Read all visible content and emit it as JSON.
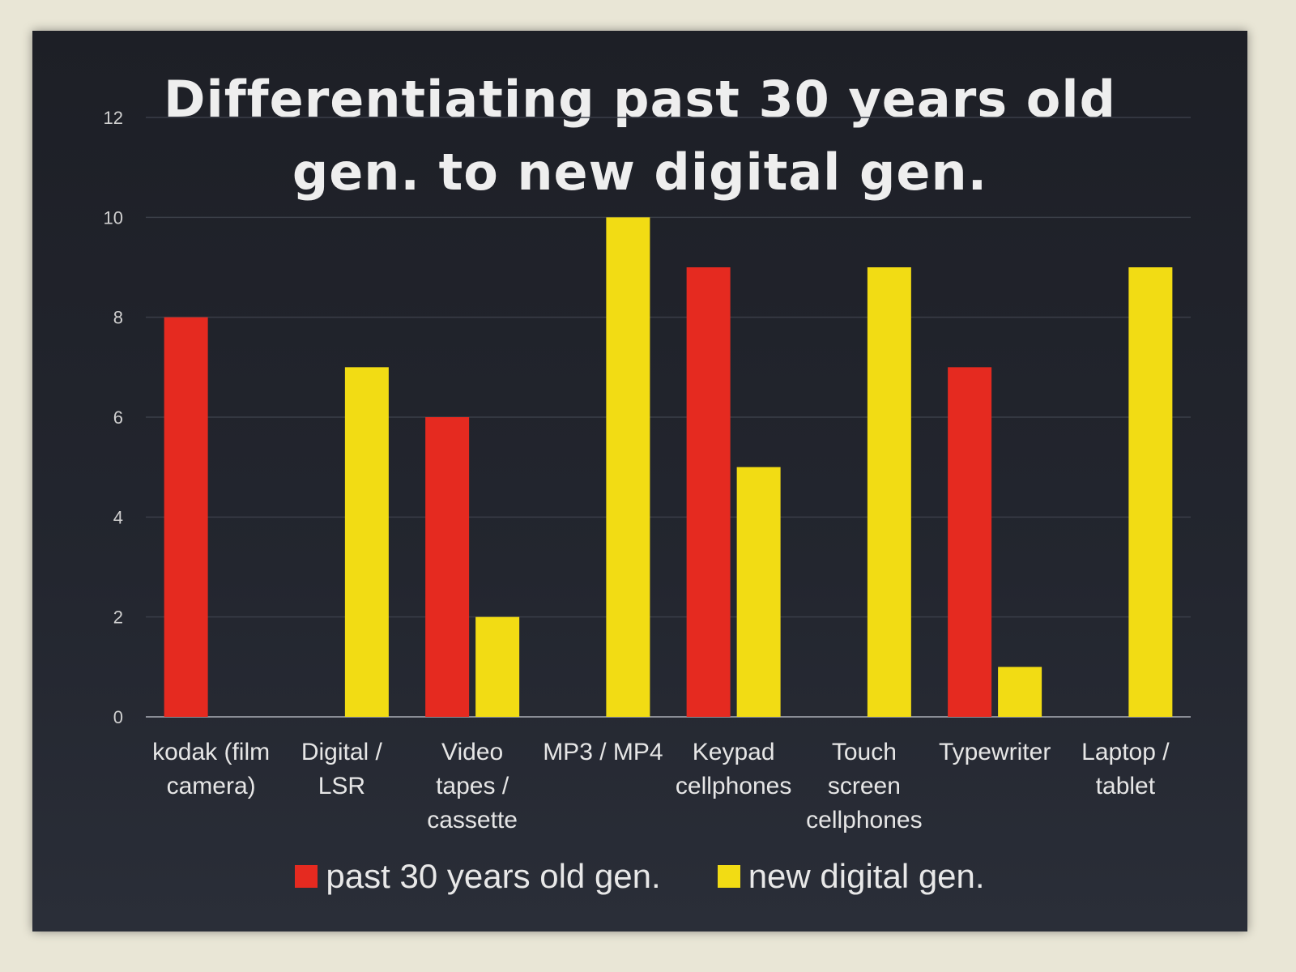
{
  "colors": {
    "red": "#e52a20",
    "yellow": "#f2dc14"
  },
  "chart_data": {
    "type": "bar",
    "title_lines": [
      "Differentiating past 30 years old",
      "gen. to new digital gen."
    ],
    "categories": [
      [
        "kodak (film",
        "camera)"
      ],
      [
        "Digital /",
        "LSR"
      ],
      [
        "Video",
        "tapes /",
        "cassette"
      ],
      [
        "MP3 / MP4"
      ],
      [
        "Keypad",
        "cellphones"
      ],
      [
        "Touch",
        "screen",
        "cellphones"
      ],
      [
        "Typewriter"
      ],
      [
        "Laptop /",
        "tablet"
      ]
    ],
    "series": [
      {
        "name": "past 30 years old gen.",
        "color": "#e52a20",
        "values": [
          8,
          0,
          6,
          0,
          9,
          0,
          7,
          0
        ]
      },
      {
        "name": "new digital gen.",
        "color": "#f2dc14",
        "values": [
          0,
          7,
          2,
          10,
          5,
          9,
          1,
          9
        ]
      }
    ],
    "ylim": [
      0,
      12
    ],
    "yticks": [
      0,
      2,
      4,
      6,
      8,
      10,
      12
    ],
    "grid": true,
    "legend_position": "bottom"
  }
}
